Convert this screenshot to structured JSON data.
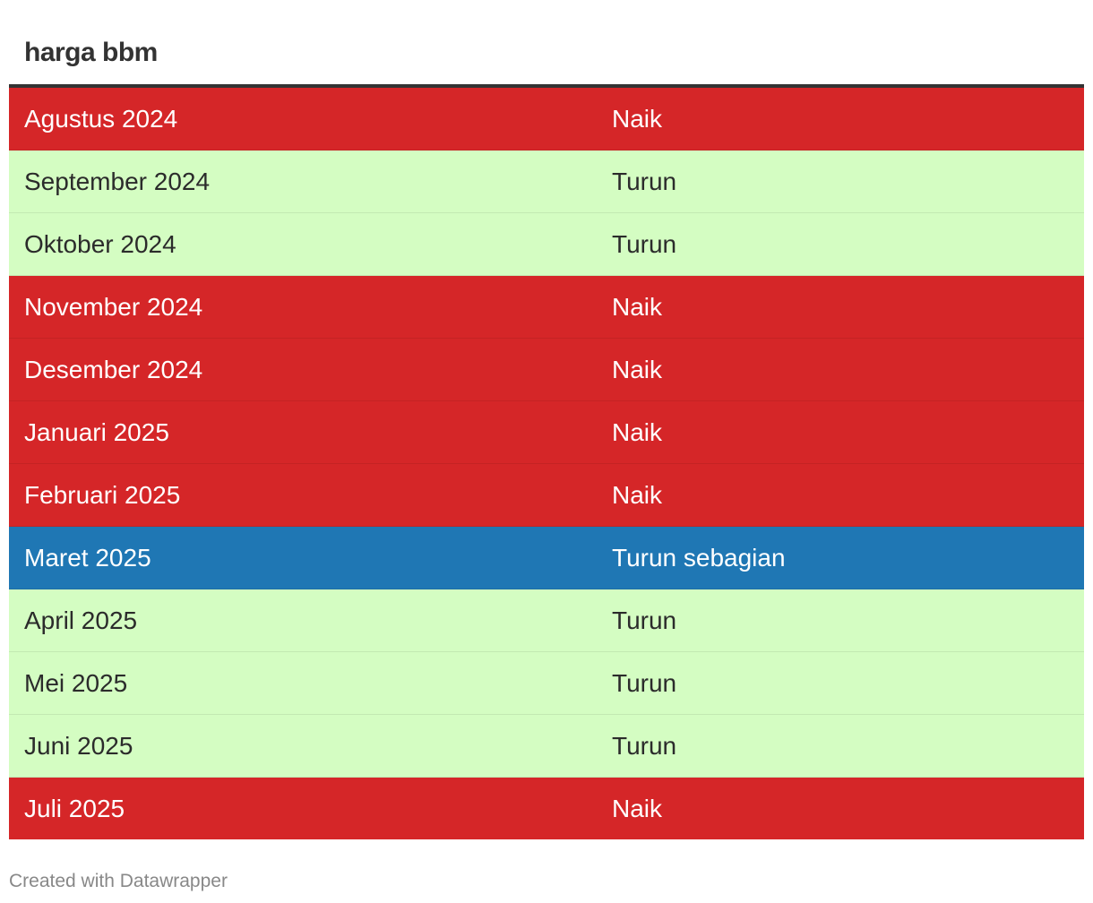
{
  "title": "harga bbm",
  "footer": "Created with Datawrapper",
  "colors": {
    "Naik": {
      "bg": "#d52628",
      "fg": "#ffffff"
    },
    "Turun": {
      "bg": "#d4fdc2",
      "fg": "#2b2b2b"
    },
    "Turun sebagian": {
      "bg": "#1f77b4",
      "fg": "#ffffff"
    }
  },
  "chart_data": {
    "type": "table",
    "title": "harga bbm",
    "columns": [
      "",
      ""
    ],
    "rows": [
      [
        "Agustus 2024",
        "Naik"
      ],
      [
        "September 2024",
        "Turun"
      ],
      [
        "Oktober 2024",
        "Turun"
      ],
      [
        "November 2024",
        "Naik"
      ],
      [
        "Desember 2024",
        "Naik"
      ],
      [
        "Januari 2025",
        "Naik"
      ],
      [
        "Februari 2025",
        "Naik"
      ],
      [
        "Maret 2025",
        "Turun sebagian"
      ],
      [
        "April 2025",
        "Turun"
      ],
      [
        "Mei 2025",
        "Turun"
      ],
      [
        "Juni 2025",
        "Turun"
      ],
      [
        "Juli 2025",
        "Naik"
      ]
    ]
  }
}
